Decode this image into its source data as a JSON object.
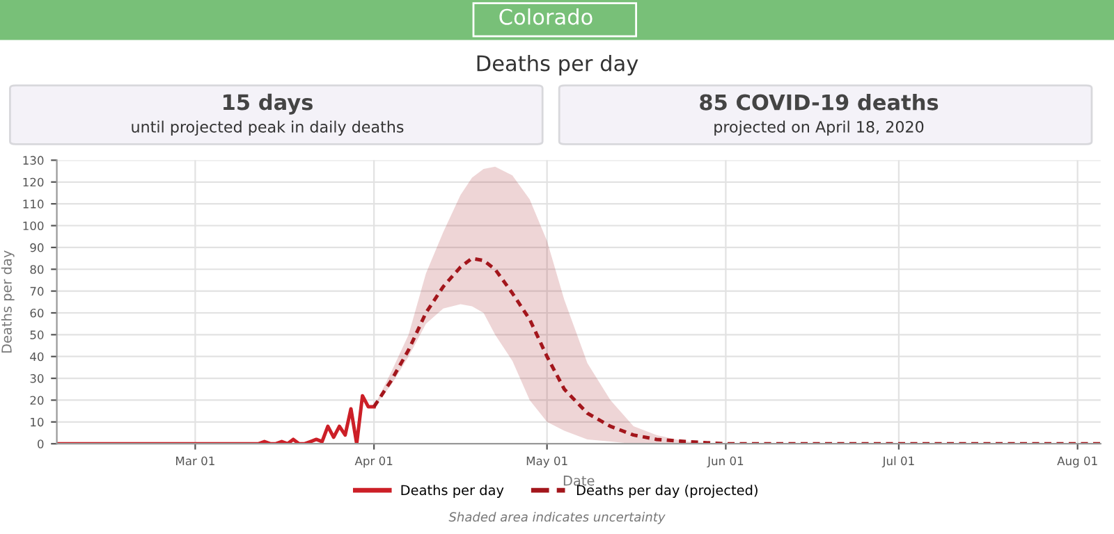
{
  "chart_data": {
    "type": "line",
    "title": "Deaths per day",
    "xlabel": "Date",
    "ylabel": "Deaths per day",
    "annotations": [
      "Colorado",
      "15 days",
      "until projected peak in daily deaths",
      "85 COVID-19 deaths",
      "projected on April 18, 2020",
      "Shaded area indicates uncertainty"
    ],
    "series": [
      {
        "name": "Deaths per day",
        "color": "#cc1f27",
        "line_style": "solid",
        "x": [
          "2020-02-06",
          "2020-03-12",
          "2020-03-13",
          "2020-03-14",
          "2020-03-15",
          "2020-03-16",
          "2020-03-17",
          "2020-03-18",
          "2020-03-19",
          "2020-03-20",
          "2020-03-21",
          "2020-03-22",
          "2020-03-23",
          "2020-03-24",
          "2020-03-25",
          "2020-03-26",
          "2020-03-27",
          "2020-03-28",
          "2020-03-29",
          "2020-03-30",
          "2020-03-31",
          "2020-04-01"
        ],
        "values": [
          0,
          0,
          1,
          0,
          0,
          1,
          0,
          2,
          0,
          0,
          1,
          2,
          1,
          8,
          3,
          8,
          4,
          16,
          0,
          22,
          17,
          17
        ]
      },
      {
        "name": "Deaths per day (projected)",
        "color": "#a3161c",
        "line_style": "dotted",
        "x": [
          "2020-04-01",
          "2020-04-04",
          "2020-04-07",
          "2020-04-10",
          "2020-04-13",
          "2020-04-16",
          "2020-04-18",
          "2020-04-20",
          "2020-04-22",
          "2020-04-25",
          "2020-04-28",
          "2020-05-01",
          "2020-05-04",
          "2020-05-08",
          "2020-05-12",
          "2020-05-16",
          "2020-05-20",
          "2020-05-25",
          "2020-06-01",
          "2020-08-05"
        ],
        "values": [
          17,
          29,
          43,
          60,
          72,
          81,
          85,
          84,
          80,
          69,
          57,
          40,
          25,
          14,
          8,
          4,
          2,
          1,
          0,
          0
        ],
        "upper": [
          17,
          33,
          50,
          78,
          97,
          114,
          122,
          126,
          127,
          123,
          112,
          93,
          66,
          37,
          20,
          8,
          4,
          1,
          0,
          0
        ],
        "lower": [
          17,
          27,
          40,
          55,
          62,
          64,
          63,
          60,
          50,
          38,
          20,
          10,
          6,
          2,
          1,
          0,
          0,
          0,
          0,
          0
        ]
      }
    ],
    "xlim": [
      "2020-02-06",
      "2020-08-05"
    ],
    "xticks": [
      {
        "value": "2020-03-01",
        "label": "Mar 01"
      },
      {
        "value": "2020-04-01",
        "label": "Apr 01"
      },
      {
        "value": "2020-05-01",
        "label": "May 01"
      },
      {
        "value": "2020-06-01",
        "label": "Jun 01"
      },
      {
        "value": "2020-07-01",
        "label": "Jul 01"
      },
      {
        "value": "2020-08-01",
        "label": "Aug 01"
      }
    ],
    "ylim": [
      0,
      130
    ],
    "yticks": [
      0,
      10,
      20,
      30,
      40,
      50,
      60,
      70,
      80,
      90,
      100,
      110,
      120,
      130
    ],
    "grid": true,
    "legend": "bottom",
    "marker": "none"
  }
}
